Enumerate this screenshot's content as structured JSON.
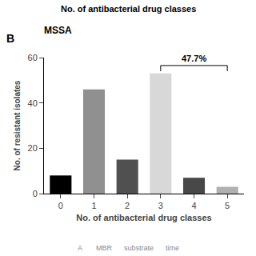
{
  "chart_data": {
    "type": "bar",
    "title": "MSSA",
    "xlabel": "No. of antibacterial drug classes",
    "ylabel": "No. of resistant isolates",
    "categories": [
      0,
      1,
      2,
      3,
      4,
      5
    ],
    "values": [
      8,
      46,
      15,
      53,
      7,
      3
    ],
    "colors": [
      "#000000",
      "#909090",
      "#505050",
      "#d8d8d8",
      "#484848",
      "#b0b0b0"
    ],
    "ylim": [
      0,
      60
    ],
    "yticks": [
      0,
      20,
      40,
      60
    ],
    "grid": false,
    "panel_label": "B",
    "top_label": "No. of antibacterial drug classes",
    "bottom_label": "A       MBR      substrate      time",
    "annotations": [
      {
        "text": "47.7%",
        "x": [
          3,
          5
        ],
        "y": 56.5
      }
    ]
  }
}
